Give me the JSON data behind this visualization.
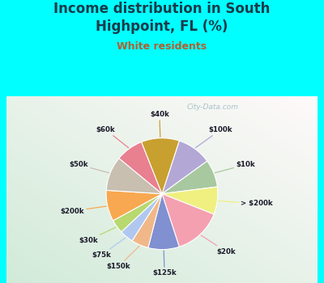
{
  "title_line1": "Income distribution in South",
  "title_line2": "Highpoint, FL (%)",
  "subtitle": "White residents",
  "bg_color": "#00FFFF",
  "chart_bg_top": "#d8ede0",
  "chart_bg_bottom": "#e8f4f8",
  "labels": [
    "$100k",
    "$10k",
    "> $200k",
    "$20k",
    "$125k",
    "$150k",
    "$75k",
    "$30k",
    "$200k",
    "$50k",
    "$60k",
    "$40k"
  ],
  "sizes": [
    10,
    8,
    8,
    14,
    9,
    5,
    4,
    4,
    9,
    10,
    8,
    11
  ],
  "colors": [
    "#b3a7d6",
    "#a8c8a0",
    "#f0f080",
    "#f4a0b0",
    "#8090d0",
    "#f0b888",
    "#b0c8f0",
    "#b8d870",
    "#f8a850",
    "#c8bfb0",
    "#e88090",
    "#c8a030"
  ],
  "start_angle": 72,
  "label_color": "#1a1a2a",
  "subtitle_color": "#b06030",
  "title_color": "#1a3a4a",
  "watermark": "City-Data.com",
  "watermark_color": "#90b0c0"
}
